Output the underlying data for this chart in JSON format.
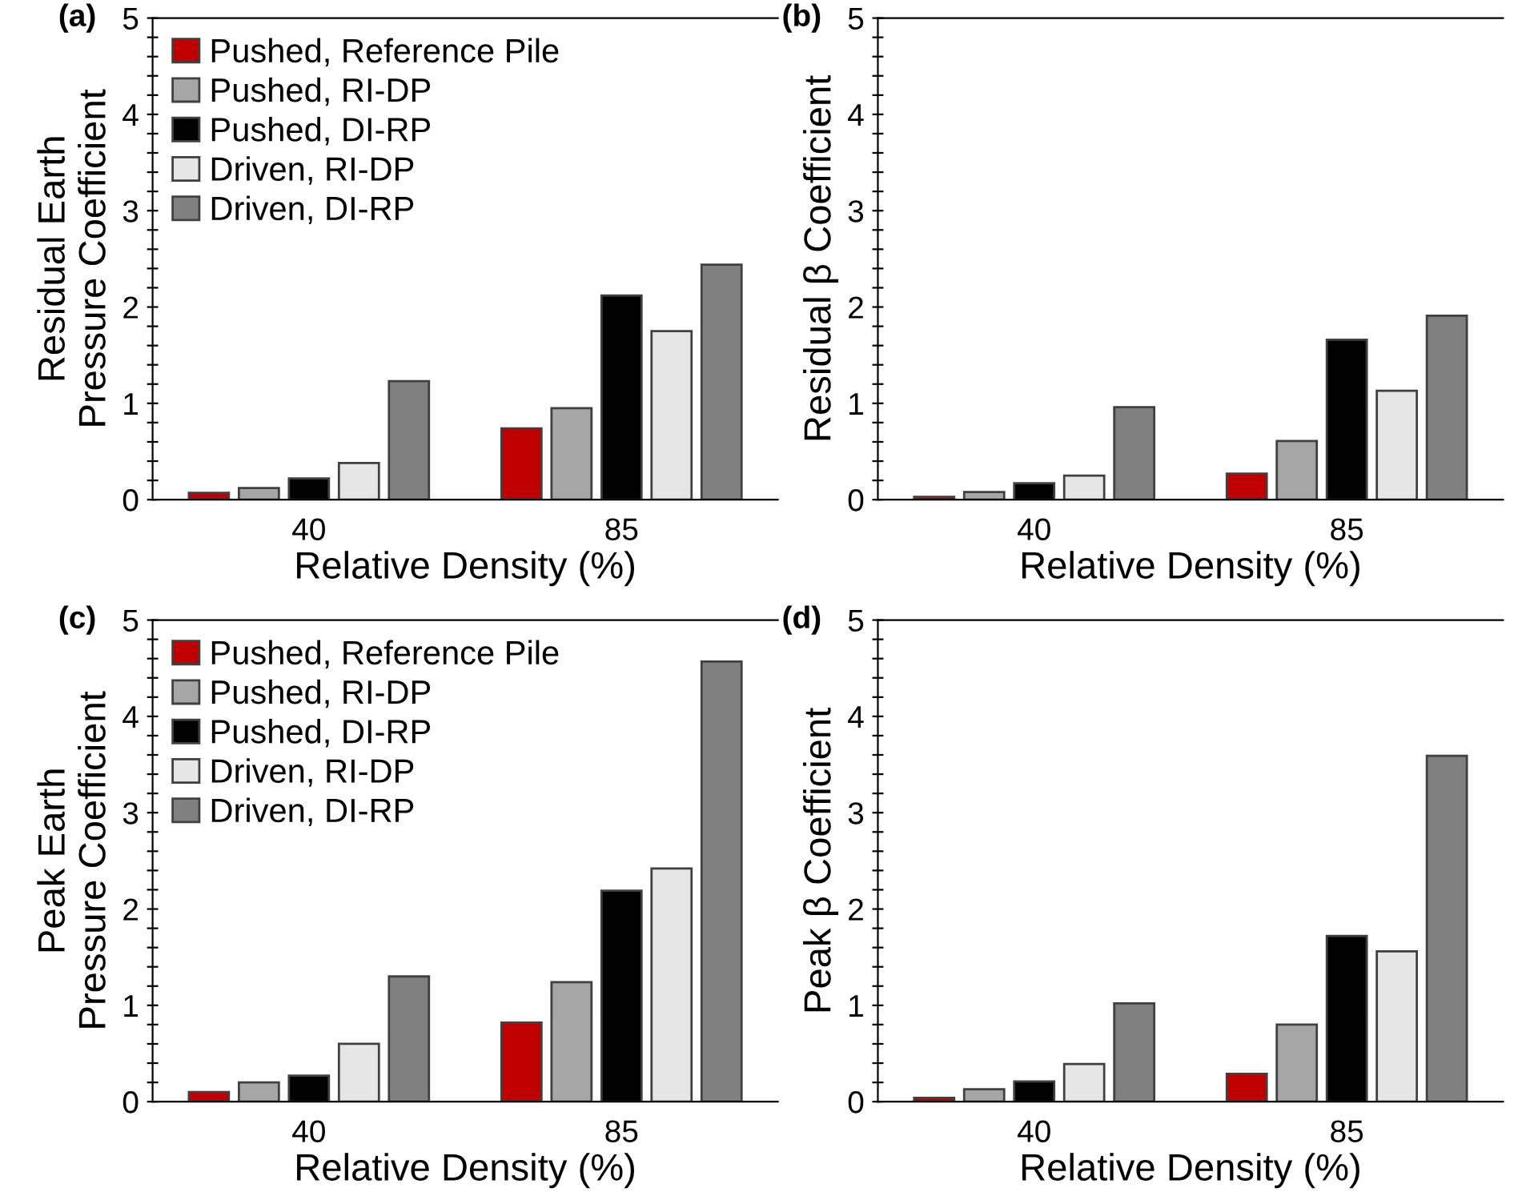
{
  "chart_data": [
    {
      "type": "bar",
      "title": "(a)",
      "xlabel": "Relative Density (%)",
      "ylabel": "Residual Earth\nPressure Coefficient",
      "categories": [
        "40",
        "85"
      ],
      "ylim": [
        0,
        5
      ],
      "yticks": [
        0,
        {
          "value": 0.2,
          "label": null
        },
        {
          "value": 0.4,
          "label": null
        },
        {
          "value": 0.6,
          "label": null
        },
        {
          "value": 0.8,
          "label": null
        },
        1,
        {
          "value": 1.2,
          "label": null
        },
        {
          "value": 1.4,
          "label": null
        },
        {
          "value": 1.6,
          "label": null
        },
        {
          "value": 1.8,
          "label": null
        },
        2,
        {
          "value": 2.2,
          "label": null
        },
        {
          "value": 2.4,
          "label": null
        },
        {
          "value": 2.6,
          "label": null
        },
        {
          "value": 2.8,
          "label": null
        },
        3,
        {
          "value": 3.2,
          "label": null
        },
        {
          "value": 3.4,
          "label": null
        },
        {
          "value": 3.6,
          "label": null
        },
        {
          "value": 3.8,
          "label": null
        },
        4,
        {
          "value": 4.2,
          "label": null
        },
        {
          "value": 4.4,
          "label": null
        },
        {
          "value": 4.6,
          "label": null
        },
        {
          "value": 4.8,
          "label": null
        },
        5
      ],
      "legend": "top left",
      "grid": false,
      "series": [
        {
          "name": "Pushed, Reference Pile",
          "color": "#c00000",
          "values": [
            0.07,
            0.74
          ]
        },
        {
          "name": "Pushed, RI-DP",
          "color": "#a6a6a6",
          "values": [
            0.12,
            0.95
          ]
        },
        {
          "name": "Pushed, DI-RP",
          "color": "#000000",
          "values": [
            0.22,
            2.12
          ]
        },
        {
          "name": "Driven, RI-DP",
          "color": "#e6e6e6",
          "values": [
            0.38,
            1.75
          ]
        },
        {
          "name": "Driven, DI-RP",
          "color": "#808080",
          "values": [
            1.23,
            2.44
          ]
        }
      ]
    },
    {
      "type": "bar",
      "title": "(b)",
      "xlabel": "Relative Density (%)",
      "ylabel": "Residual β Coefficient",
      "categories": [
        "40",
        "85"
      ],
      "ylim": [
        0,
        5
      ],
      "yticks": [
        0,
        {
          "value": 0.2,
          "label": null
        },
        {
          "value": 0.4,
          "label": null
        },
        {
          "value": 0.6,
          "label": null
        },
        {
          "value": 0.8,
          "label": null
        },
        1,
        {
          "value": 1.2,
          "label": null
        },
        {
          "value": 1.4,
          "label": null
        },
        {
          "value": 1.6,
          "label": null
        },
        {
          "value": 1.8,
          "label": null
        },
        2,
        {
          "value": 2.2,
          "label": null
        },
        {
          "value": 2.4,
          "label": null
        },
        {
          "value": 2.6,
          "label": null
        },
        {
          "value": 2.8,
          "label": null
        },
        3,
        {
          "value": 3.2,
          "label": null
        },
        {
          "value": 3.4,
          "label": null
        },
        {
          "value": 3.6,
          "label": null
        },
        {
          "value": 3.8,
          "label": null
        },
        4,
        {
          "value": 4.2,
          "label": null
        },
        {
          "value": 4.4,
          "label": null
        },
        {
          "value": 4.6,
          "label": null
        },
        {
          "value": 4.8,
          "label": null
        },
        5
      ],
      "grid": false,
      "series": [
        {
          "color": "#c00000",
          "values": [
            0.03,
            0.27
          ]
        },
        {
          "color": "#a6a6a6",
          "values": [
            0.08,
            0.61
          ]
        },
        {
          "color": "#000000",
          "values": [
            0.17,
            1.66
          ]
        },
        {
          "color": "#e6e6e6",
          "values": [
            0.25,
            1.13
          ]
        },
        {
          "color": "#808080",
          "values": [
            0.96,
            1.91
          ]
        }
      ]
    },
    {
      "type": "bar",
      "title": "(c)",
      "xlabel": "Relative Density (%)",
      "ylabel": "Peak Earth\nPressure Coefficient",
      "categories": [
        "40",
        "85"
      ],
      "ylim": [
        0,
        5
      ],
      "yticks": [
        0,
        {
          "value": 0.2,
          "label": null
        },
        {
          "value": 0.4,
          "label": null
        },
        {
          "value": 0.6,
          "label": null
        },
        {
          "value": 0.8,
          "label": null
        },
        1,
        {
          "value": 1.2,
          "label": null
        },
        {
          "value": 1.4,
          "label": null
        },
        {
          "value": 1.6,
          "label": null
        },
        {
          "value": 1.8,
          "label": null
        },
        2,
        {
          "value": 2.2,
          "label": null
        },
        {
          "value": 2.4,
          "label": null
        },
        {
          "value": 2.6,
          "label": null
        },
        {
          "value": 2.8,
          "label": null
        },
        3,
        {
          "value": 3.2,
          "label": null
        },
        {
          "value": 3.4,
          "label": null
        },
        {
          "value": 3.6,
          "label": null
        },
        {
          "value": 3.8,
          "label": null
        },
        4,
        {
          "value": 4.2,
          "label": null
        },
        {
          "value": 4.4,
          "label": null
        },
        {
          "value": 4.6,
          "label": null
        },
        {
          "value": 4.8,
          "label": null
        },
        5
      ],
      "legend": "top left",
      "grid": false,
      "series": [
        {
          "name": "Pushed, Reference Pile",
          "color": "#c00000",
          "values": [
            0.1,
            0.82
          ]
        },
        {
          "name": "Pushed, RI-DP",
          "color": "#a6a6a6",
          "values": [
            0.2,
            1.24
          ]
        },
        {
          "name": "Pushed, DI-RP",
          "color": "#000000",
          "values": [
            0.27,
            2.19
          ]
        },
        {
          "name": "Driven, RI-DP",
          "color": "#e6e6e6",
          "values": [
            0.6,
            2.42
          ]
        },
        {
          "name": "Driven, DI-RP",
          "color": "#808080",
          "values": [
            1.3,
            4.57
          ]
        }
      ]
    },
    {
      "type": "bar",
      "title": "(d)",
      "xlabel": "Relative Density (%)",
      "ylabel": "Peak β Coefficient",
      "categories": [
        "40",
        "85"
      ],
      "ylim": [
        0,
        5
      ],
      "yticks": [
        0,
        {
          "value": 0.2,
          "label": null
        },
        {
          "value": 0.4,
          "label": null
        },
        {
          "value": 0.6,
          "label": null
        },
        {
          "value": 0.8,
          "label": null
        },
        1,
        {
          "value": 1.2,
          "label": null
        },
        {
          "value": 1.4,
          "label": null
        },
        {
          "value": 1.6,
          "label": null
        },
        {
          "value": 1.8,
          "label": null
        },
        2,
        {
          "value": 2.2,
          "label": null
        },
        {
          "value": 2.4,
          "label": null
        },
        {
          "value": 2.6,
          "label": null
        },
        {
          "value": 2.8,
          "label": null
        },
        3,
        {
          "value": 3.2,
          "label": null
        },
        {
          "value": 3.4,
          "label": null
        },
        {
          "value": 3.6,
          "label": null
        },
        {
          "value": 3.8,
          "label": null
        },
        4,
        {
          "value": 4.2,
          "label": null
        },
        {
          "value": 4.4,
          "label": null
        },
        {
          "value": 4.6,
          "label": null
        },
        {
          "value": 4.8,
          "label": null
        },
        5
      ],
      "grid": false,
      "series": [
        {
          "color": "#c00000",
          "values": [
            0.04,
            0.29
          ]
        },
        {
          "color": "#a6a6a6",
          "values": [
            0.13,
            0.8
          ]
        },
        {
          "color": "#000000",
          "values": [
            0.21,
            1.72
          ]
        },
        {
          "color": "#e6e6e6",
          "values": [
            0.39,
            1.56
          ]
        },
        {
          "color": "#808080",
          "values": [
            1.02,
            3.59
          ]
        }
      ]
    }
  ]
}
